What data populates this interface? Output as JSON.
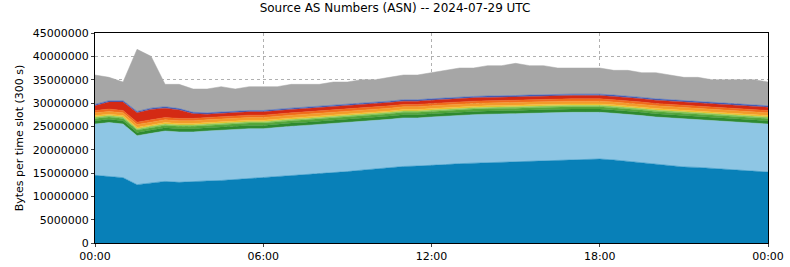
{
  "chart_data": {
    "type": "area",
    "title": "Source AS Numbers (ASN) -- 2024-07-29 UTC",
    "y_label": "Bytes per time slot (300 s)",
    "stacked": true,
    "grid": true,
    "categories": [
      "00:00",
      null,
      null,
      null,
      null,
      null,
      null,
      null,
      null,
      null,
      null,
      null,
      "06:00",
      null,
      null,
      null,
      null,
      null,
      null,
      null,
      null,
      null,
      null,
      null,
      "12:00",
      null,
      null,
      null,
      null,
      null,
      null,
      null,
      null,
      null,
      null,
      null,
      "18:00",
      null,
      null,
      null,
      null,
      null,
      null,
      null,
      null,
      null,
      null,
      null,
      "00:00"
    ],
    "ylim": [
      0,
      45000000
    ],
    "yticks": [
      0,
      5000000,
      10000000,
      15000000,
      20000000,
      25000000,
      30000000,
      35000000,
      40000000,
      45000000
    ],
    "series": [
      {
        "color": "#0880b8",
        "values": [
          14500000,
          14200000,
          14000000,
          12500000,
          12800000,
          13200000,
          13000000,
          13200000,
          13300000,
          13400000,
          13600000,
          13800000,
          14000000,
          14200000,
          14400000,
          14600000,
          14800000,
          15000000,
          15300000,
          15600000,
          15900000,
          16200000,
          16400000,
          16500000,
          16600000,
          16800000,
          17000000,
          17100000,
          17200000,
          17200000,
          17300000,
          17400000,
          17500000,
          17600000,
          17800000,
          17900000,
          18000000,
          17800000,
          17500000,
          17200000,
          16800000,
          16500000,
          16300000,
          16200000,
          16000000,
          15800000,
          15700000,
          15500000,
          15200000
        ]
      },
      {
        "color": "#8ec6e4",
        "values": [
          11000000,
          11600000,
          11500000,
          10500000,
          10700000,
          10800000,
          10800000,
          10600000,
          10700000,
          10800000,
          10700000,
          10700000,
          10500000,
          10600000,
          10600000,
          10600000,
          10600000,
          10600000,
          10500000,
          10400000,
          10300000,
          10300000,
          10400000,
          10300000,
          10400000,
          10400000,
          10400000,
          10400000,
          10400000,
          10400000,
          10400000,
          10400000,
          10400000,
          10400000,
          10200000,
          10100000,
          10000000,
          10000000,
          10100000,
          10100000,
          10200000,
          10300000,
          10300000,
          10300000,
          10300000,
          10200000,
          10200000,
          10200000,
          10300000
        ]
      },
      {
        "color": "#2f8a2f",
        "values": [
          700000,
          700000,
          700000,
          700000,
          700000,
          700000,
          700000,
          700000,
          700000,
          700000,
          700000,
          700000,
          700000,
          700000,
          700000,
          700000,
          700000,
          700000,
          700000,
          700000,
          700000,
          700000,
          700000,
          700000,
          700000,
          700000,
          700000,
          700000,
          700000,
          700000,
          700000,
          700000,
          700000,
          700000,
          700000,
          700000,
          700000,
          700000,
          700000,
          700000,
          700000,
          700000,
          700000,
          700000,
          700000,
          700000,
          700000,
          700000,
          700000
        ]
      },
      {
        "color": "#55a83c",
        "values": [
          500000,
          500000,
          500000,
          500000,
          500000,
          500000,
          500000,
          500000,
          500000,
          500000,
          500000,
          500000,
          500000,
          500000,
          500000,
          500000,
          500000,
          500000,
          500000,
          500000,
          500000,
          500000,
          500000,
          500000,
          500000,
          500000,
          500000,
          500000,
          500000,
          500000,
          500000,
          500000,
          500000,
          500000,
          500000,
          500000,
          500000,
          500000,
          500000,
          500000,
          500000,
          500000,
          500000,
          500000,
          500000,
          500000,
          500000,
          500000,
          500000
        ]
      },
      {
        "color": "#98cc5a",
        "values": [
          300000,
          300000,
          300000,
          300000,
          300000,
          300000,
          300000,
          300000,
          300000,
          300000,
          300000,
          300000,
          300000,
          300000,
          300000,
          300000,
          300000,
          300000,
          300000,
          300000,
          300000,
          300000,
          300000,
          300000,
          300000,
          300000,
          300000,
          300000,
          300000,
          300000,
          300000,
          300000,
          300000,
          300000,
          300000,
          300000,
          300000,
          300000,
          300000,
          300000,
          300000,
          300000,
          300000,
          300000,
          300000,
          300000,
          300000,
          300000,
          300000
        ]
      },
      {
        "color": "#f2c12e",
        "values": [
          300000,
          300000,
          300000,
          300000,
          300000,
          300000,
          300000,
          300000,
          300000,
          300000,
          300000,
          300000,
          300000,
          300000,
          300000,
          300000,
          300000,
          300000,
          300000,
          300000,
          300000,
          300000,
          300000,
          300000,
          300000,
          300000,
          300000,
          300000,
          300000,
          300000,
          300000,
          300000,
          300000,
          300000,
          300000,
          300000,
          300000,
          300000,
          300000,
          300000,
          300000,
          300000,
          300000,
          300000,
          300000,
          300000,
          300000,
          300000,
          300000
        ]
      },
      {
        "color": "#f39a2b",
        "values": [
          600000,
          600000,
          600000,
          600000,
          600000,
          600000,
          600000,
          600000,
          600000,
          600000,
          600000,
          600000,
          600000,
          600000,
          600000,
          600000,
          600000,
          600000,
          600000,
          600000,
          600000,
          600000,
          600000,
          600000,
          600000,
          600000,
          600000,
          600000,
          600000,
          600000,
          600000,
          600000,
          600000,
          600000,
          600000,
          600000,
          600000,
          600000,
          600000,
          600000,
          600000,
          600000,
          600000,
          600000,
          600000,
          600000,
          600000,
          600000,
          600000
        ]
      },
      {
        "color": "#ef6a1c",
        "values": [
          500000,
          500000,
          500000,
          500000,
          500000,
          500000,
          500000,
          500000,
          500000,
          500000,
          500000,
          500000,
          500000,
          500000,
          500000,
          500000,
          500000,
          500000,
          500000,
          500000,
          500000,
          500000,
          500000,
          500000,
          500000,
          500000,
          500000,
          500000,
          500000,
          500000,
          500000,
          500000,
          500000,
          500000,
          500000,
          500000,
          500000,
          500000,
          500000,
          500000,
          500000,
          500000,
          500000,
          500000,
          500000,
          500000,
          500000,
          500000,
          500000
        ]
      },
      {
        "color": "#d42a14",
        "values": [
          1000000,
          1500000,
          1800000,
          2000000,
          2200000,
          2000000,
          1800000,
          1000000,
          700000,
          700000,
          700000,
          700000,
          700000,
          700000,
          700000,
          700000,
          700000,
          700000,
          700000,
          700000,
          700000,
          700000,
          700000,
          700000,
          700000,
          700000,
          700000,
          700000,
          700000,
          700000,
          700000,
          700000,
          700000,
          700000,
          700000,
          700000,
          700000,
          700000,
          700000,
          700000,
          700000,
          700000,
          700000,
          700000,
          700000,
          700000,
          700000,
          700000,
          700000
        ]
      },
      {
        "color": "#3a5fbf",
        "values": [
          300000,
          300000,
          300000,
          300000,
          300000,
          300000,
          300000,
          300000,
          300000,
          300000,
          300000,
          300000,
          300000,
          300000,
          300000,
          300000,
          300000,
          300000,
          300000,
          300000,
          300000,
          300000,
          300000,
          300000,
          300000,
          300000,
          300000,
          300000,
          300000,
          300000,
          300000,
          300000,
          300000,
          300000,
          300000,
          300000,
          300000,
          300000,
          300000,
          300000,
          300000,
          300000,
          300000,
          300000,
          300000,
          300000,
          300000,
          300000,
          300000
        ]
      },
      {
        "color": "#a6a6a6",
        "values": [
          6300000,
          5000000,
          4000000,
          13300000,
          11100000,
          4800000,
          5200000,
          5000000,
          5100000,
          5400000,
          4800000,
          5100000,
          5100000,
          4800000,
          5100000,
          4900000,
          4700000,
          5000000,
          4800000,
          5100000,
          4900000,
          5100000,
          5300000,
          5300000,
          5600000,
          5900000,
          6200000,
          6100000,
          6500000,
          6500000,
          6900000,
          6300000,
          6200000,
          5600000,
          5600000,
          5600000,
          5600000,
          5300000,
          5500000,
          5300000,
          5600000,
          5300000,
          5000000,
          5100000,
          4800000,
          5100000,
          5200000,
          5400000,
          5100000
        ]
      }
    ]
  }
}
